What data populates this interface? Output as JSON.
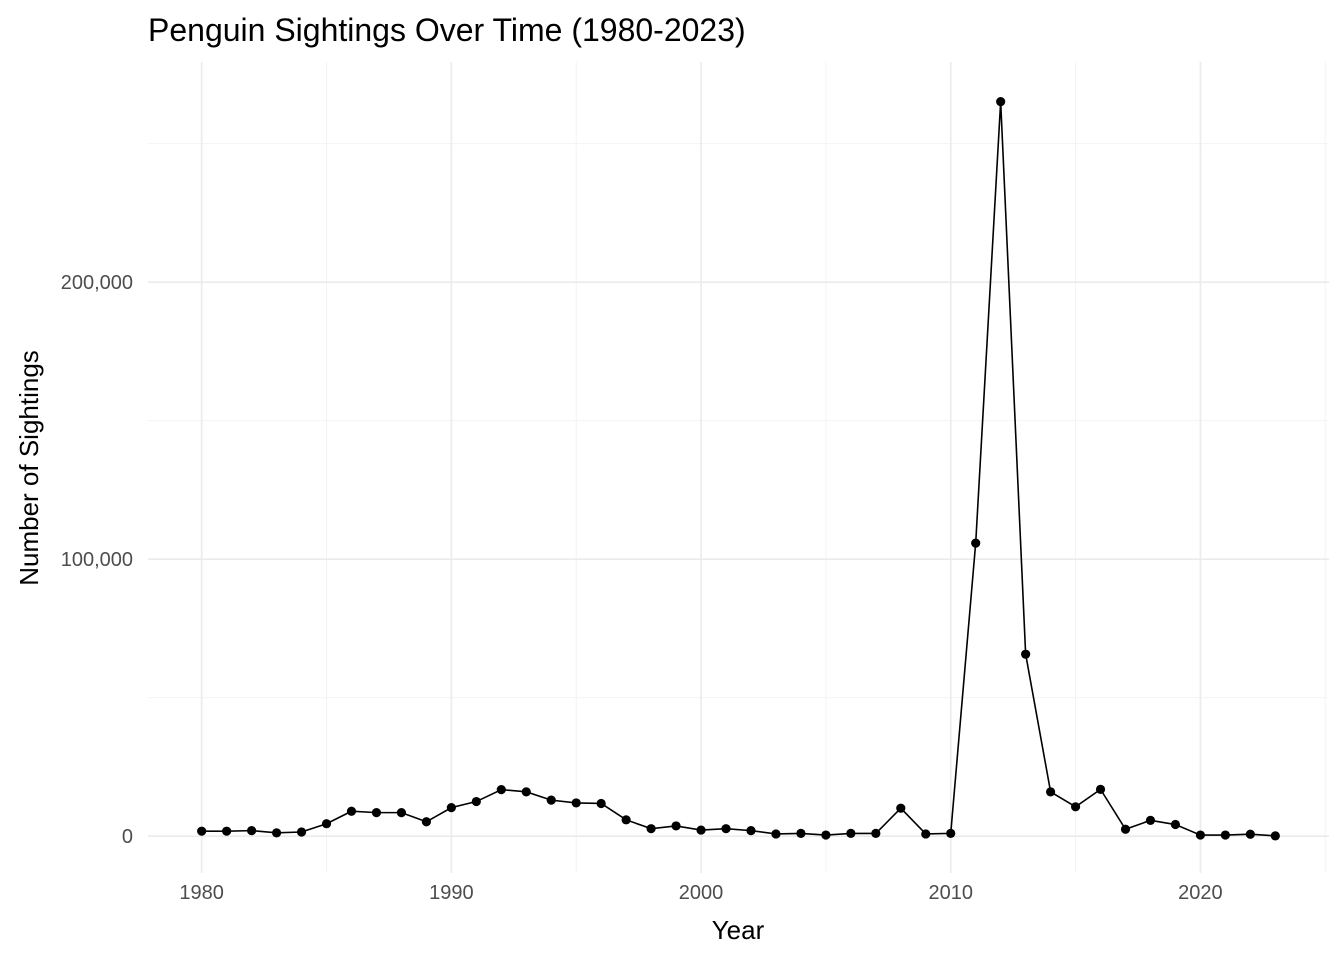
{
  "chart_data": {
    "type": "line",
    "title": "Penguin Sightings Over Time (1980-2023)",
    "xlabel": "Year",
    "ylabel": "Number of Sightings",
    "xlim": [
      1977.85,
      2025.15
    ],
    "ylim": [
      -13300,
      279500
    ],
    "x_ticks": [
      1980,
      1990,
      2000,
      2010,
      2020
    ],
    "x_minor_ticks": [
      1985,
      1995,
      2005,
      2015,
      2025
    ],
    "y_ticks": [
      0,
      100000,
      200000
    ],
    "y_tick_labels": [
      "0",
      "100,000",
      "200,000"
    ],
    "y_minor_ticks": [
      50000,
      150000,
      250000
    ],
    "grid": true,
    "line_color": "#000000",
    "point_color": "#000000",
    "x": [
      1980,
      1981,
      1982,
      1983,
      1984,
      1985,
      1986,
      1987,
      1988,
      1989,
      1990,
      1991,
      1992,
      1993,
      1994,
      1995,
      1996,
      1997,
      1998,
      1999,
      2000,
      2001,
      2002,
      2003,
      2004,
      2005,
      2006,
      2007,
      2008,
      2009,
      2010,
      2011,
      2012,
      2013,
      2014,
      2015,
      2016,
      2017,
      2018,
      2019,
      2020,
      2021,
      2022,
      2023
    ],
    "values": [
      1800,
      1800,
      2000,
      1200,
      1500,
      4500,
      9000,
      8500,
      8500,
      5200,
      10300,
      12500,
      16800,
      16000,
      13000,
      12000,
      11800,
      5900,
      2700,
      3700,
      2200,
      2700,
      2000,
      800,
      1000,
      400,
      1000,
      1000,
      10100,
      800,
      1000,
      105800,
      265200,
      65700,
      16000,
      10600,
      16900,
      2500,
      5700,
      4200,
      400,
      400,
      700,
      100
    ]
  }
}
